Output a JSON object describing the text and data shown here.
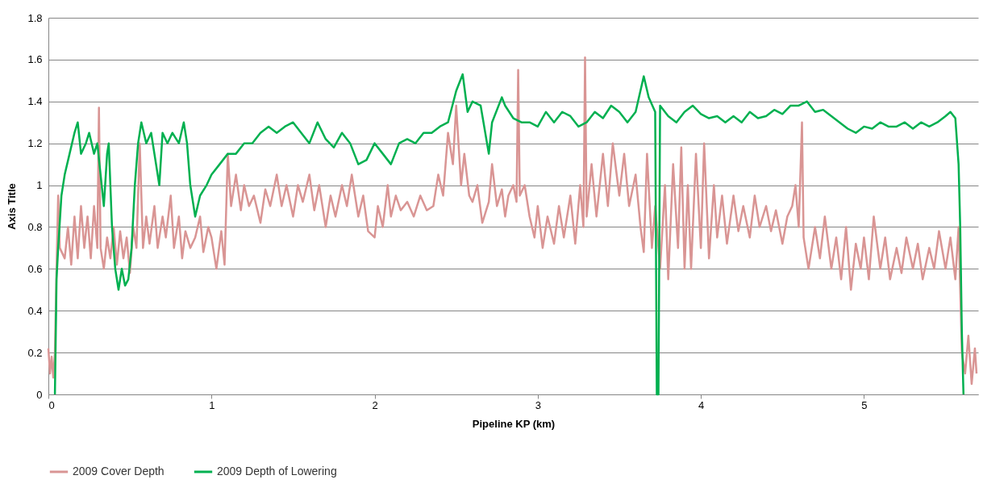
{
  "chart_data": {
    "type": "line",
    "xlabel": "Pipeline KP (km)",
    "ylabel": "Axis Title",
    "xlim": [
      0,
      5.7
    ],
    "xticks": [
      0,
      1,
      2,
      3,
      4,
      5
    ],
    "ylim": [
      0,
      1.8
    ],
    "yticks": [
      0,
      0.2,
      0.4,
      0.6,
      0.8,
      1,
      1.2,
      1.4,
      1.6,
      1.8
    ],
    "grid": "y",
    "legend": "bottom",
    "marker": "none",
    "line_style": "solid",
    "series": [
      {
        "name": "2009 Cover Depth",
        "color": "#d99594",
        "x": [
          0,
          0.01,
          0.02,
          0.03,
          0.04,
          0.05,
          0.06,
          0.07,
          0.1,
          0.12,
          0.14,
          0.16,
          0.18,
          0.2,
          0.22,
          0.24,
          0.26,
          0.28,
          0.3,
          0.31,
          0.32,
          0.34,
          0.36,
          0.38,
          0.4,
          0.42,
          0.44,
          0.46,
          0.48,
          0.5,
          0.52,
          0.54,
          0.56,
          0.58,
          0.6,
          0.62,
          0.65,
          0.67,
          0.7,
          0.72,
          0.75,
          0.77,
          0.8,
          0.82,
          0.84,
          0.87,
          0.9,
          0.93,
          0.95,
          0.98,
          1,
          1.03,
          1.06,
          1.08,
          1.1,
          1.12,
          1.15,
          1.18,
          1.2,
          1.23,
          1.26,
          1.3,
          1.33,
          1.36,
          1.4,
          1.43,
          1.46,
          1.5,
          1.53,
          1.56,
          1.6,
          1.63,
          1.66,
          1.7,
          1.73,
          1.76,
          1.8,
          1.83,
          1.86,
          1.9,
          1.93,
          1.96,
          2,
          2.02,
          2.05,
          2.08,
          2.1,
          2.13,
          2.16,
          2.2,
          2.24,
          2.28,
          2.32,
          2.36,
          2.39,
          2.42,
          2.45,
          2.48,
          2.5,
          2.53,
          2.55,
          2.58,
          2.6,
          2.63,
          2.66,
          2.7,
          2.72,
          2.75,
          2.78,
          2.8,
          2.82,
          2.85,
          2.87,
          2.88,
          2.89,
          2.92,
          2.95,
          2.98,
          3,
          3.03,
          3.06,
          3.1,
          3.13,
          3.16,
          3.2,
          3.23,
          3.26,
          3.28,
          3.29,
          3.3,
          3.33,
          3.36,
          3.4,
          3.43,
          3.46,
          3.5,
          3.53,
          3.56,
          3.6,
          3.63,
          3.65,
          3.67,
          3.7,
          3.72,
          3.75,
          3.78,
          3.8,
          3.83,
          3.86,
          3.88,
          3.9,
          3.92,
          3.94,
          3.97,
          4,
          4.02,
          4.05,
          4.08,
          4.1,
          4.13,
          4.16,
          4.2,
          4.23,
          4.26,
          4.3,
          4.33,
          4.36,
          4.4,
          4.43,
          4.46,
          4.5,
          4.53,
          4.56,
          4.58,
          4.6,
          4.62,
          4.63,
          4.66,
          4.7,
          4.73,
          4.76,
          4.8,
          4.83,
          4.86,
          4.89,
          4.92,
          4.95,
          4.98,
          5,
          5.03,
          5.06,
          5.1,
          5.13,
          5.16,
          5.2,
          5.23,
          5.26,
          5.3,
          5.33,
          5.36,
          5.4,
          5.43,
          5.46,
          5.5,
          5.53,
          5.56,
          5.58,
          5.6,
          5.62,
          5.64,
          5.66,
          5.68,
          5.69
        ],
        "values": [
          0.22,
          0.1,
          0.18,
          0.08,
          0.2,
          0.6,
          0.95,
          0.7,
          0.65,
          0.8,
          0.62,
          0.85,
          0.65,
          0.9,
          0.7,
          0.85,
          0.65,
          0.9,
          0.7,
          1.37,
          0.7,
          0.6,
          0.75,
          0.65,
          0.8,
          0.62,
          0.78,
          0.65,
          0.75,
          0.58,
          0.8,
          0.7,
          1.2,
          0.7,
          0.85,
          0.72,
          0.9,
          0.7,
          0.85,
          0.75,
          0.95,
          0.7,
          0.85,
          0.65,
          0.78,
          0.7,
          0.75,
          0.85,
          0.68,
          0.8,
          0.75,
          0.6,
          0.78,
          0.62,
          1.15,
          0.9,
          1.05,
          0.88,
          1,
          0.9,
          0.95,
          0.82,
          0.98,
          0.9,
          1.05,
          0.9,
          1,
          0.85,
          1,
          0.92,
          1.05,
          0.88,
          1,
          0.8,
          0.95,
          0.85,
          1,
          0.9,
          1.05,
          0.85,
          0.95,
          0.78,
          0.75,
          0.9,
          0.8,
          1,
          0.85,
          0.95,
          0.88,
          0.92,
          0.85,
          0.95,
          0.88,
          0.9,
          1.05,
          0.95,
          1.25,
          1.1,
          1.38,
          1,
          1.15,
          0.95,
          0.92,
          1,
          0.82,
          0.92,
          1.1,
          0.9,
          0.98,
          0.85,
          0.95,
          1,
          0.92,
          1.55,
          0.95,
          1,
          0.85,
          0.75,
          0.9,
          0.7,
          0.85,
          0.72,
          0.9,
          0.75,
          0.95,
          0.72,
          1,
          0.8,
          1.61,
          0.85,
          1.1,
          0.85,
          1.15,
          0.9,
          1.2,
          0.95,
          1.15,
          0.9,
          1.05,
          0.8,
          0.68,
          1.15,
          0.7,
          0.9,
          0.6,
          1,
          0.55,
          1.1,
          0.7,
          1.18,
          0.6,
          1,
          0.6,
          1.15,
          0.7,
          1.2,
          0.65,
          1,
          0.75,
          0.95,
          0.72,
          0.95,
          0.78,
          0.9,
          0.75,
          0.95,
          0.8,
          0.9,
          0.78,
          0.88,
          0.72,
          0.85,
          0.9,
          1,
          0.8,
          1.3,
          0.75,
          0.6,
          0.8,
          0.65,
          0.85,
          0.6,
          0.75,
          0.55,
          0.8,
          0.5,
          0.72,
          0.6,
          0.75,
          0.55,
          0.85,
          0.6,
          0.75,
          0.55,
          0.7,
          0.58,
          0.75,
          0.6,
          0.72,
          0.55,
          0.7,
          0.6,
          0.78,
          0.6,
          0.75,
          0.55,
          0.8,
          0.2,
          0.1,
          0.28,
          0.05,
          0.22,
          0.1
        ]
      },
      {
        "name": "2009 Depth of Lowering",
        "color": "#00b050",
        "x": [
          0.04,
          0.05,
          0.06,
          0.08,
          0.1,
          0.13,
          0.16,
          0.18,
          0.2,
          0.23,
          0.25,
          0.28,
          0.3,
          0.32,
          0.34,
          0.36,
          0.37,
          0.39,
          0.41,
          0.43,
          0.45,
          0.47,
          0.49,
          0.51,
          0.53,
          0.55,
          0.57,
          0.6,
          0.63,
          0.66,
          0.68,
          0.7,
          0.73,
          0.76,
          0.8,
          0.83,
          0.85,
          0.87,
          0.9,
          0.93,
          0.97,
          1,
          1.05,
          1.1,
          1.15,
          1.2,
          1.25,
          1.3,
          1.35,
          1.4,
          1.45,
          1.5,
          1.55,
          1.6,
          1.65,
          1.7,
          1.75,
          1.8,
          1.85,
          1.9,
          1.95,
          2,
          2.05,
          2.1,
          2.15,
          2.2,
          2.25,
          2.3,
          2.35,
          2.4,
          2.45,
          2.5,
          2.54,
          2.57,
          2.6,
          2.65,
          2.7,
          2.72,
          2.78,
          2.8,
          2.85,
          2.9,
          2.95,
          3,
          3.05,
          3.1,
          3.15,
          3.2,
          3.25,
          3.3,
          3.35,
          3.4,
          3.45,
          3.5,
          3.55,
          3.6,
          3.65,
          3.68,
          3.72,
          3.73,
          3.74,
          3.75,
          3.8,
          3.85,
          3.9,
          3.95,
          4,
          4.05,
          4.1,
          4.15,
          4.2,
          4.25,
          4.3,
          4.35,
          4.4,
          4.45,
          4.5,
          4.55,
          4.6,
          4.65,
          4.7,
          4.75,
          4.8,
          4.85,
          4.9,
          4.95,
          5,
          5.05,
          5.1,
          5.15,
          5.2,
          5.25,
          5.3,
          5.35,
          5.4,
          5.45,
          5.5,
          5.53,
          5.56,
          5.58,
          5.59,
          5.6,
          5.61
        ],
        "values": [
          0,
          0.55,
          0.7,
          0.95,
          1.05,
          1.15,
          1.25,
          1.3,
          1.15,
          1.2,
          1.25,
          1.15,
          1.2,
          1.05,
          0.9,
          1.15,
          1.2,
          0.8,
          0.6,
          0.5,
          0.6,
          0.52,
          0.55,
          0.7,
          1,
          1.2,
          1.3,
          1.2,
          1.25,
          1.1,
          1,
          1.25,
          1.2,
          1.25,
          1.2,
          1.3,
          1.2,
          1,
          0.85,
          0.95,
          1,
          1.05,
          1.1,
          1.15,
          1.15,
          1.2,
          1.2,
          1.25,
          1.28,
          1.25,
          1.28,
          1.3,
          1.25,
          1.2,
          1.3,
          1.22,
          1.18,
          1.25,
          1.2,
          1.1,
          1.12,
          1.2,
          1.15,
          1.1,
          1.2,
          1.22,
          1.2,
          1.25,
          1.25,
          1.28,
          1.3,
          1.45,
          1.53,
          1.35,
          1.4,
          1.38,
          1.15,
          1.3,
          1.42,
          1.38,
          1.32,
          1.3,
          1.3,
          1.28,
          1.35,
          1.3,
          1.35,
          1.33,
          1.28,
          1.3,
          1.35,
          1.32,
          1.38,
          1.35,
          1.3,
          1.35,
          1.52,
          1.42,
          1.35,
          0,
          0,
          1.38,
          1.33,
          1.3,
          1.35,
          1.38,
          1.34,
          1.32,
          1.33,
          1.3,
          1.33,
          1.3,
          1.35,
          1.32,
          1.33,
          1.36,
          1.34,
          1.38,
          1.38,
          1.4,
          1.35,
          1.36,
          1.33,
          1.3,
          1.27,
          1.25,
          1.28,
          1.27,
          1.3,
          1.28,
          1.28,
          1.3,
          1.27,
          1.3,
          1.28,
          1.3,
          1.33,
          1.35,
          1.32,
          1.1,
          0.8,
          0.3,
          0
        ]
      }
    ]
  }
}
